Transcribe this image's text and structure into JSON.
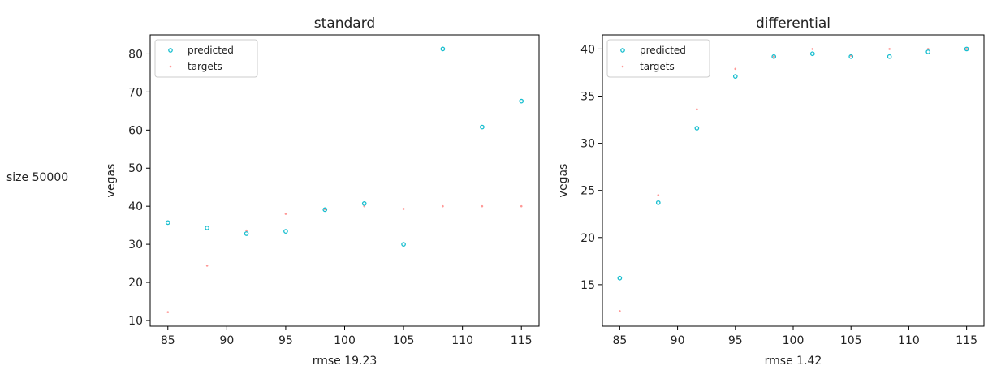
{
  "row_label": "size 50000",
  "colors": {
    "predicted": "#17becf",
    "targets": "#ff9896"
  },
  "chart_data": [
    {
      "type": "scatter",
      "title": "standard",
      "xlabel": "rmse 19.23",
      "ylabel": "vegas",
      "xlim": [
        83.5,
        116.5
      ],
      "ylim": [
        8.5,
        85.0
      ],
      "xticks": [
        85,
        90,
        95,
        100,
        105,
        110,
        115
      ],
      "yticks": [
        10,
        20,
        30,
        40,
        50,
        60,
        70,
        80
      ],
      "legend": "top-left",
      "x": [
        85,
        88.33,
        91.67,
        95,
        98.33,
        101.67,
        105,
        108.33,
        111.67,
        115
      ],
      "series": [
        {
          "name": "predicted",
          "marker": "circle",
          "values": [
            35.7,
            34.3,
            32.8,
            33.4,
            39.1,
            40.7,
            30.0,
            81.3,
            60.8,
            67.6
          ]
        },
        {
          "name": "targets",
          "marker": "dot",
          "values": [
            12.2,
            24.4,
            33.6,
            38.0,
            39.2,
            40.0,
            39.3,
            40.0,
            40.0,
            40.0
          ]
        }
      ]
    },
    {
      "type": "scatter",
      "title": "differential",
      "xlabel": "rmse 1.42",
      "ylabel": "vegas",
      "xlim": [
        83.5,
        116.5
      ],
      "ylim": [
        10.6,
        41.5
      ],
      "xticks": [
        85,
        90,
        95,
        100,
        105,
        110,
        115
      ],
      "yticks": [
        15,
        20,
        25,
        30,
        35,
        40
      ],
      "legend": "top-left",
      "x": [
        85,
        88.33,
        91.67,
        95,
        98.33,
        101.67,
        105,
        108.33,
        111.67,
        115
      ],
      "series": [
        {
          "name": "predicted",
          "marker": "circle",
          "values": [
            15.7,
            23.7,
            31.6,
            37.1,
            39.2,
            39.5,
            39.2,
            39.2,
            39.7,
            40.0
          ]
        },
        {
          "name": "targets",
          "marker": "dot",
          "values": [
            12.2,
            24.5,
            33.6,
            37.9,
            39.2,
            40.0,
            39.3,
            40.0,
            40.0,
            40.0
          ]
        }
      ]
    }
  ]
}
